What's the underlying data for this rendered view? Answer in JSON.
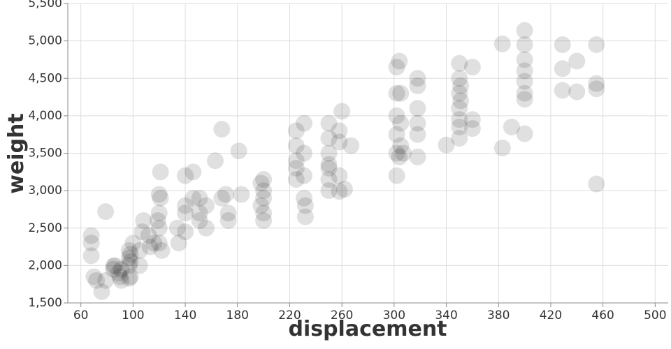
{
  "chart_data": {
    "type": "scatter",
    "x_label": "displacement",
    "y_label": "weight",
    "xlim": [
      50,
      510
    ],
    "ylim": [
      1500,
      5500
    ],
    "xticks": [
      60,
      100,
      140,
      180,
      220,
      260,
      300,
      340,
      380,
      420,
      460,
      500
    ],
    "yticks": [
      {
        "value": 1500,
        "label": "1,500"
      },
      {
        "value": 2000,
        "label": "2,000"
      },
      {
        "value": 2500,
        "label": "2,500"
      },
      {
        "value": 3000,
        "label": "3,000"
      },
      {
        "value": 3500,
        "label": "3,500"
      },
      {
        "value": 4000,
        "label": "4,000"
      },
      {
        "value": 4500,
        "label": "4,500"
      },
      {
        "value": 5000,
        "label": "5,000"
      },
      {
        "value": 5500,
        "label": "5,500"
      }
    ],
    "grid": true,
    "color": "#000000",
    "opacity": 0.12,
    "x": [
      68,
      68,
      68,
      70,
      72,
      76,
      79,
      79,
      85,
      85,
      86,
      89,
      90,
      91,
      91,
      97,
      97,
      97,
      98,
      98,
      98,
      97,
      100,
      105,
      105,
      107,
      108,
      112,
      113,
      116,
      119,
      120,
      120,
      120,
      120,
      121,
      121,
      122,
      134,
      135,
      140,
      140,
      140,
      140,
      146,
      146,
      151,
      151,
      151,
      156,
      156,
      163,
      168,
      168,
      171,
      173,
      173,
      181,
      183,
      198,
      198,
      200,
      200,
      200,
      200,
      200,
      225,
      225,
      225,
      225,
      225,
      231,
      231,
      231,
      231,
      232,
      232,
      250,
      250,
      250,
      250,
      250,
      250,
      250,
      258,
      258,
      258,
      258,
      260,
      262,
      267,
      302,
      302,
      302,
      302,
      302,
      302,
      304,
      304,
      305,
      305,
      305,
      307,
      318,
      318,
      318,
      318,
      318,
      318,
      340,
      350,
      350,
      350,
      350,
      350,
      350,
      350,
      351,
      351,
      360,
      360,
      360,
      383,
      383,
      390,
      400,
      400,
      400,
      400,
      400,
      400,
      400,
      400,
      429,
      429,
      429,
      440,
      440,
      455,
      455,
      455,
      455
    ],
    "values": [
      2400,
      2300,
      2130,
      1850,
      1800,
      1650,
      2720,
      1800,
      1990,
      1950,
      2000,
      1900,
      1850,
      1800,
      1950,
      2000,
      2100,
      2200,
      2150,
      2050,
      1850,
      1830,
      2300,
      2200,
      2000,
      2450,
      2600,
      2400,
      2250,
      2300,
      2600,
      2950,
      2700,
      2500,
      2300,
      2900,
      3250,
      2200,
      2500,
      2300,
      2800,
      2700,
      2450,
      3200,
      3250,
      2900,
      2600,
      2900,
      2700,
      2800,
      2500,
      3400,
      3820,
      2900,
      2950,
      2600,
      2700,
      3530,
      2950,
      3100,
      2800,
      3000,
      3150,
      2900,
      2600,
      2700,
      3600,
      3400,
      3300,
      3150,
      3800,
      3900,
      3500,
      3200,
      2900,
      2650,
      2800,
      3900,
      3700,
      3500,
      3350,
      3300,
      3150,
      3000,
      3800,
      3650,
      3200,
      2990,
      4060,
      3020,
      3600,
      4650,
      4300,
      4000,
      3750,
      3500,
      3200,
      4730,
      3450,
      4300,
      3900,
      3600,
      3500,
      4500,
      4400,
      4100,
      3900,
      3750,
      3450,
      3610,
      4700,
      4500,
      4300,
      4100,
      3950,
      3700,
      3850,
      4400,
      4200,
      4650,
      3950,
      3830,
      3570,
      4960,
      3850,
      5140,
      4950,
      4750,
      4460,
      4300,
      4220,
      3760,
      4600,
      4950,
      4630,
      4340,
      4730,
      4320,
      4950,
      4430,
      4360,
      3090
    ]
  }
}
